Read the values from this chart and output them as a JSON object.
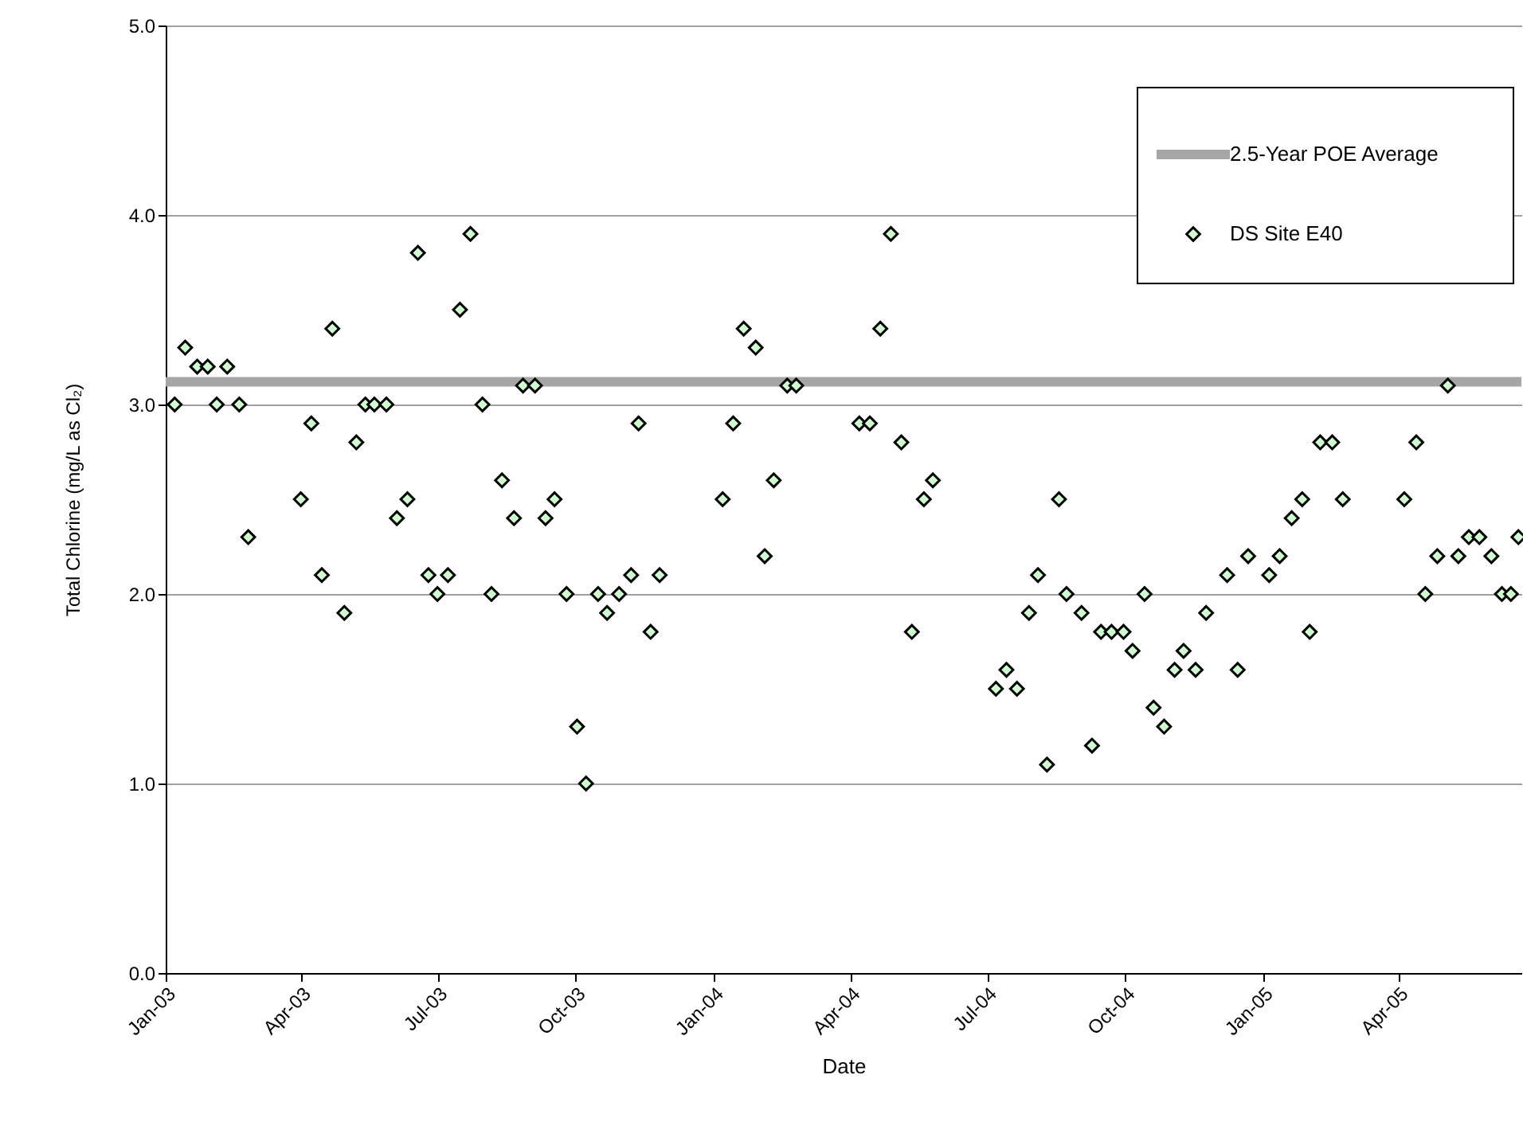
{
  "chart_data": {
    "type": "scatter",
    "xlabel": "Date",
    "ylabel": "Total Chlorine (mg/L as Cl₂)",
    "xlim": [
      "2003-01-01",
      "2005-06-22"
    ],
    "xticks": [
      {
        "value": "2003-01-01",
        "label": "Jan-03"
      },
      {
        "value": "2003-04-01",
        "label": "Apr-03"
      },
      {
        "value": "2003-07-01",
        "label": "Jul-03"
      },
      {
        "value": "2003-10-01",
        "label": "Oct-03"
      },
      {
        "value": "2004-01-01",
        "label": "Jan-04"
      },
      {
        "value": "2004-04-01",
        "label": "Apr-04"
      },
      {
        "value": "2004-07-01",
        "label": "Jul-04"
      },
      {
        "value": "2004-10-01",
        "label": "Oct-04"
      },
      {
        "value": "2005-01-01",
        "label": "Jan-05"
      },
      {
        "value": "2005-04-01",
        "label": "Apr-05"
      }
    ],
    "ylim": [
      0,
      5
    ],
    "yticks": [
      {
        "value": 0,
        "label": "0.0"
      },
      {
        "value": 1,
        "label": "1.0"
      },
      {
        "value": 2,
        "label": "2.0"
      },
      {
        "value": 3,
        "label": "3.0"
      },
      {
        "value": 4,
        "label": "4.0"
      },
      {
        "value": 5,
        "label": "5.0"
      }
    ],
    "grid": "y",
    "legend": "top right",
    "marker": "diamond",
    "ref_lines": [
      {
        "axis": "y",
        "value": 3.12,
        "label": "2.5-Year POE Average",
        "color": "#a6a6a6"
      }
    ],
    "series": [
      {
        "name": "DS Site E40",
        "color": "#ccffcc",
        "x": [
          "2003-01-07",
          "2003-01-14",
          "2003-01-22",
          "2003-01-29",
          "2003-02-04",
          "2003-02-11",
          "2003-02-19",
          "2003-02-25",
          "2003-04-01",
          "2003-04-08",
          "2003-04-15",
          "2003-04-22",
          "2003-04-30",
          "2003-05-08",
          "2003-05-14",
          "2003-05-20",
          "2003-05-28",
          "2003-06-04",
          "2003-06-11",
          "2003-06-18",
          "2003-06-25",
          "2003-07-01",
          "2003-07-08",
          "2003-07-16",
          "2003-07-23",
          "2003-07-31",
          "2003-08-06",
          "2003-08-13",
          "2003-08-21",
          "2003-08-27",
          "2003-09-04",
          "2003-09-11",
          "2003-09-17",
          "2003-09-25",
          "2003-10-02",
          "2003-10-08",
          "2003-10-16",
          "2003-10-22",
          "2003-10-30",
          "2003-11-07",
          "2003-11-12",
          "2003-11-20",
          "2003-11-26",
          "2004-01-07",
          "2004-01-14",
          "2004-01-21",
          "2004-01-29",
          "2004-02-04",
          "2004-02-10",
          "2004-02-19",
          "2004-02-25",
          "2004-04-07",
          "2004-04-14",
          "2004-04-21",
          "2004-04-28",
          "2004-05-05",
          "2004-05-12",
          "2004-05-20",
          "2004-05-26",
          "2004-07-07",
          "2004-07-14",
          "2004-07-21",
          "2004-07-29",
          "2004-08-04",
          "2004-08-10",
          "2004-08-18",
          "2004-08-23",
          "2004-09-02",
          "2004-09-09",
          "2004-09-15",
          "2004-09-22",
          "2004-09-30",
          "2004-10-06",
          "2004-10-14",
          "2004-10-20",
          "2004-10-27",
          "2004-11-03",
          "2004-11-09",
          "2004-11-17",
          "2004-11-24",
          "2004-12-08",
          "2004-12-15",
          "2004-12-22",
          "2005-01-05",
          "2005-01-12",
          "2005-01-20",
          "2005-01-27",
          "2005-02-01",
          "2005-02-08",
          "2005-02-16",
          "2005-02-23",
          "2005-04-05",
          "2005-04-13",
          "2005-04-19",
          "2005-04-27",
          "2005-05-04",
          "2005-05-11",
          "2005-05-18",
          "2005-05-25",
          "2005-06-02",
          "2005-06-09",
          "2005-06-15",
          "2005-06-20"
        ],
        "values": [
          3.0,
          3.3,
          3.2,
          3.2,
          3.0,
          3.2,
          3.0,
          2.3,
          2.5,
          2.9,
          2.1,
          3.4,
          1.9,
          2.8,
          3.0,
          3.0,
          3.0,
          2.4,
          2.5,
          3.8,
          2.1,
          2.0,
          2.1,
          3.5,
          3.9,
          3.0,
          2.0,
          2.6,
          2.4,
          3.1,
          3.1,
          2.4,
          2.5,
          2.0,
          1.3,
          1.0,
          2.0,
          1.9,
          2.0,
          2.1,
          2.9,
          1.8,
          2.1,
          2.5,
          2.9,
          3.4,
          3.3,
          2.2,
          2.6,
          3.1,
          3.1,
          2.9,
          2.9,
          3.4,
          3.9,
          2.8,
          1.8,
          2.5,
          2.6,
          1.5,
          1.6,
          1.5,
          1.9,
          2.1,
          1.1,
          2.5,
          2.0,
          1.9,
          1.2,
          1.8,
          1.8,
          1.8,
          1.7,
          2.0,
          1.4,
          1.3,
          1.6,
          1.7,
          1.6,
          1.9,
          2.1,
          1.6,
          2.2,
          2.1,
          2.2,
          2.4,
          2.5,
          1.8,
          2.8,
          2.8,
          2.5,
          2.5,
          2.8,
          2.0,
          2.2,
          3.1,
          2.2,
          2.3,
          2.3,
          2.2,
          2.0,
          2.0,
          2.3
        ]
      }
    ]
  }
}
